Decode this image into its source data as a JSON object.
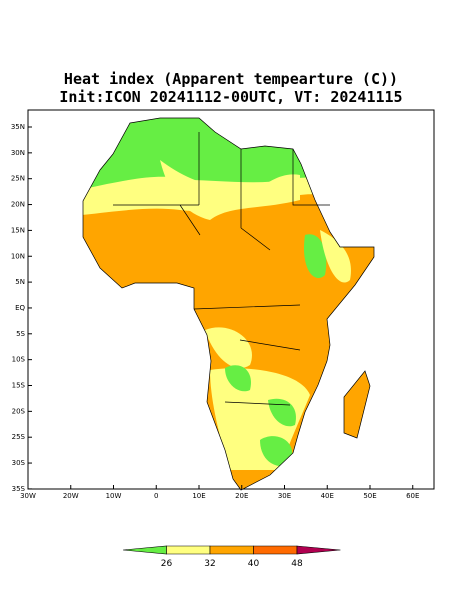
{
  "title": {
    "line1": "Heat index (Apparent tempearture (C))",
    "line2": "Init:ICON 20241112-00UTC, VT: 20241115"
  },
  "map": {
    "lat_labels": [
      "35N",
      "30N",
      "25N",
      "20N",
      "15N",
      "10N",
      "5N",
      "EQ",
      "5S",
      "10S",
      "15S",
      "20S",
      "25S",
      "30S",
      "35S"
    ],
    "lon_labels": [
      "30W",
      "20W",
      "10W",
      "0",
      "10E",
      "20E",
      "30E",
      "40E",
      "50E",
      "60E"
    ]
  },
  "colorbar": {
    "labels": [
      "26",
      "32",
      "40",
      "48"
    ],
    "colors": [
      "#66ee44",
      "#ffff80",
      "#ffa500",
      "#ff6a00",
      "#b00050"
    ]
  }
}
